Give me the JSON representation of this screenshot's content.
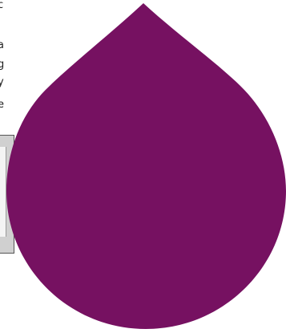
{
  "background": {
    "fragments": [
      "c",
      "a",
      "g",
      "y",
      "e"
    ]
  },
  "shape": {
    "type": "teardrop",
    "fill": "#761161"
  },
  "colors": {
    "page": "#ffffff",
    "accent": "#761161"
  }
}
